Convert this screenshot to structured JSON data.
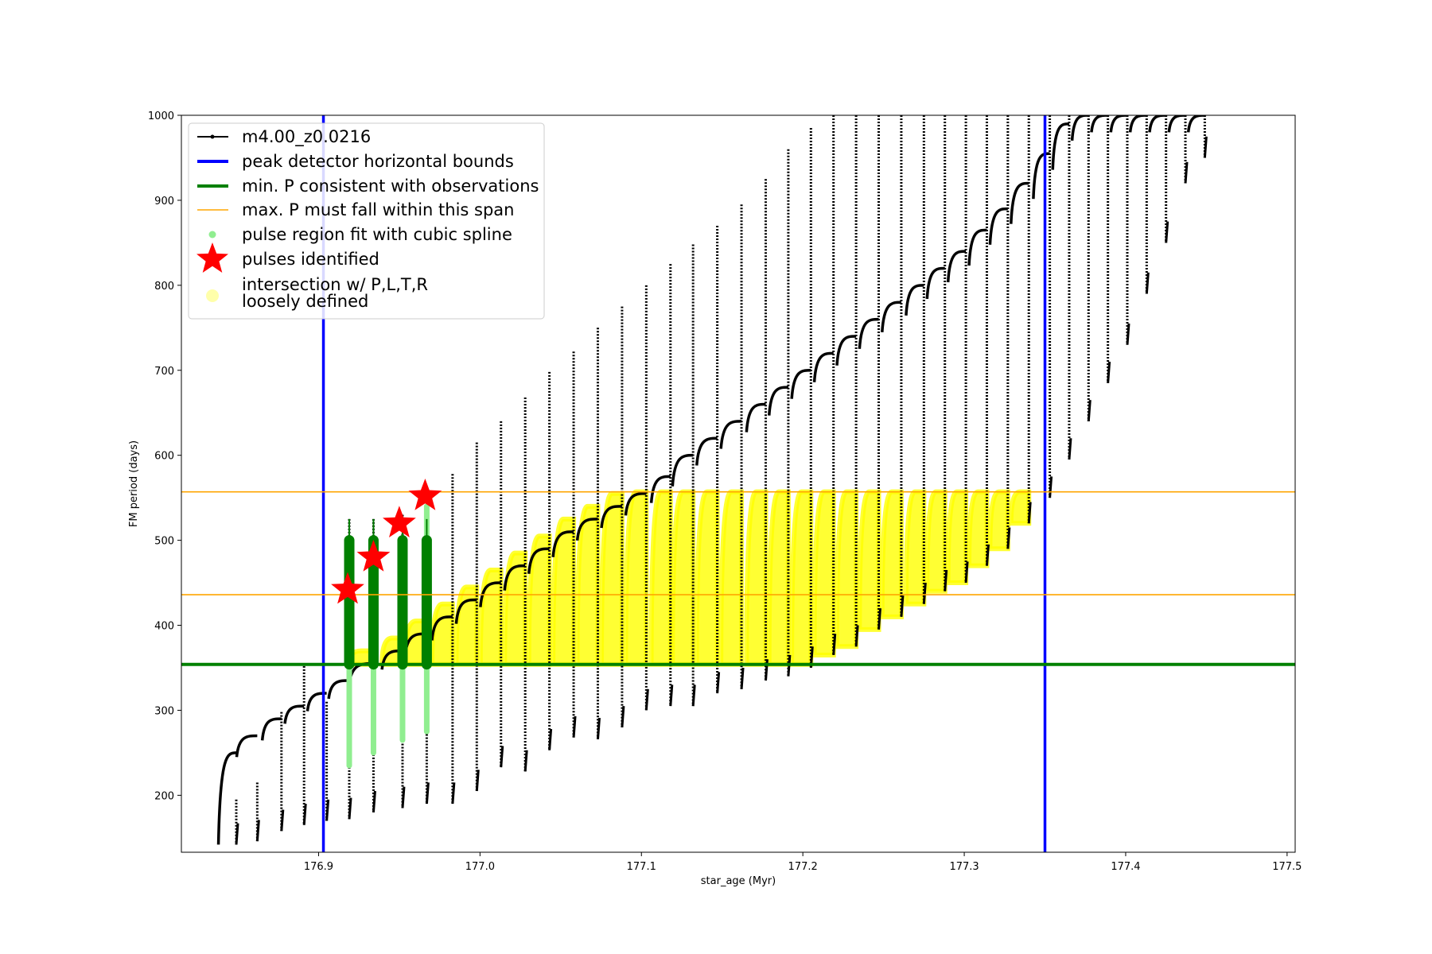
{
  "chart_data": {
    "type": "scatter",
    "xlabel": "star_age (Myr)",
    "ylabel": "FM period (days)",
    "xlim": [
      176.815,
      177.505
    ],
    "ylim": [
      133,
      1000
    ],
    "xticks": [
      176.9,
      177.0,
      177.1,
      177.2,
      177.3,
      177.4,
      177.5
    ],
    "xtick_labels": [
      "176.9",
      "177.0",
      "177.1",
      "177.2",
      "177.3",
      "177.4",
      "177.5"
    ],
    "yticks": [
      200,
      300,
      400,
      500,
      600,
      700,
      800,
      900,
      1000
    ],
    "ytick_labels": [
      "200",
      "300",
      "400",
      "500",
      "600",
      "700",
      "800",
      "900",
      "1000"
    ],
    "grid": false,
    "legend_placement": "upper-left",
    "legend": [
      {
        "label": "m4.00_z0.0216",
        "marker": "line-dot",
        "color": "#000000"
      },
      {
        "label": "peak detector horizontal bounds",
        "marker": "line",
        "color": "#0000ff"
      },
      {
        "label": "min. P consistent with observations",
        "marker": "line",
        "color": "#008000"
      },
      {
        "label": "max. P must fall within this span",
        "marker": "thin-line",
        "color": "#ffa500"
      },
      {
        "label": "pulse region fit with cubic spline",
        "marker": "dot",
        "color": "#90ee90"
      },
      {
        "label": "pulses identified",
        "marker": "star",
        "color": "#ff0000"
      },
      {
        "label": "intersection w/ P,L,T,R",
        "label2": "loosely defined",
        "marker": "big-dot",
        "color": "#ffffaa"
      }
    ],
    "vertical_lines": [
      {
        "name": "peak detector horizontal bounds",
        "x": [
          176.903,
          177.35
        ],
        "color": "#0000ff"
      }
    ],
    "horizontal_lines": [
      {
        "name": "min. P consistent with observations",
        "y": 354,
        "color": "#008000"
      },
      {
        "name": "max. P must fall within this span",
        "y": [
          436,
          557
        ],
        "color": "#ffa500"
      }
    ],
    "series": [
      {
        "name": "m4.00_z0.0216",
        "kind": "pulse_sawtooth",
        "color": "#000000",
        "pulse_ages": [
          176.849,
          176.862,
          176.877,
          176.891,
          176.905,
          176.919,
          176.934,
          176.952,
          176.967,
          176.983,
          176.998,
          177.013,
          177.028,
          177.043,
          177.058,
          177.073,
          177.088,
          177.103,
          177.118,
          177.132,
          177.147,
          177.162,
          177.177,
          177.191,
          177.205,
          177.219,
          177.233,
          177.247,
          177.261,
          177.275,
          177.288,
          177.301,
          177.314,
          177.327,
          177.34,
          177.353,
          177.365,
          177.377,
          177.389,
          177.401,
          177.413,
          177.425,
          177.437,
          177.449
        ],
        "pulse_min_period": [
          142,
          146,
          158,
          165,
          170,
          172,
          180,
          185,
          190,
          190,
          205,
          233,
          228,
          253,
          268,
          266,
          280,
          300,
          305,
          305,
          320,
          325,
          335,
          340,
          350,
          365,
          375,
          395,
          410,
          425,
          440,
          450,
          470,
          490,
          520,
          550,
          595,
          640,
          685,
          730,
          790,
          850,
          920,
          950
        ],
        "pulse_peak_period": [
          250,
          270,
          290,
          305,
          320,
          335,
          355,
          370,
          390,
          410,
          430,
          450,
          470,
          490,
          510,
          525,
          540,
          555,
          575,
          600,
          620,
          640,
          660,
          680,
          700,
          720,
          740,
          760,
          780,
          800,
          820,
          840,
          865,
          890,
          920,
          955,
          990,
          1000,
          1000,
          1000,
          1000,
          1000,
          1000,
          1000
        ],
        "pulse_spike_top": [
          195,
          215,
          298,
          352,
          310,
          525,
          525,
          530,
          560,
          578,
          615,
          640,
          668,
          698,
          722,
          750,
          775,
          800,
          825,
          848,
          870,
          895,
          925,
          960,
          985,
          1000,
          1000,
          1000,
          1000,
          1000,
          1000,
          1000,
          1000,
          1000,
          1000,
          1000,
          1000,
          1000,
          1000,
          1000,
          1000,
          1000,
          1000,
          1000
        ]
      },
      {
        "name": "pulse region fit with cubic spline",
        "kind": "pulse_segments",
        "color": "#90ee90",
        "pulse_ages": [
          176.919,
          176.934,
          176.952,
          176.967
        ],
        "lower": [
          235,
          250,
          265,
          275
        ],
        "upper": [
          500,
          500,
          500,
          540
        ]
      },
      {
        "name": "pulses identified",
        "kind": "stars",
        "color": "#ff0000",
        "x": [
          176.918,
          176.934,
          176.95,
          176.966
        ],
        "y": [
          442,
          480,
          520,
          552
        ]
      },
      {
        "name": "intersection w/ P,L,T,R loosely defined",
        "kind": "region",
        "color": "#ffff00",
        "x_range": [
          176.903,
          177.35
        ],
        "y_range": [
          354,
          557
        ]
      }
    ]
  }
}
